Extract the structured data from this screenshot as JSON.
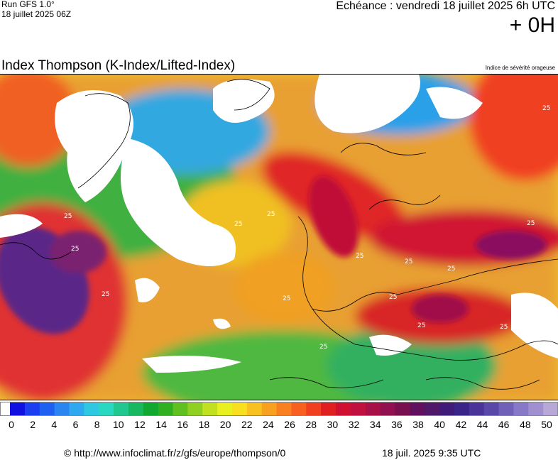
{
  "header": {
    "run": "Run GFS 1.0°",
    "run_date": "18 juillet 2025 06Z",
    "echeance": "Echéance : vendredi 18 juillet 2025 6h UTC",
    "hour": "+ 0H"
  },
  "map": {
    "title": "Index Thompson (K-Index/Lifted-Index)",
    "subtitle": "Indice de sévérité orageuse",
    "contour_labels": [
      "25",
      "25",
      "25",
      "25",
      "25",
      "25",
      "25",
      "25",
      "25",
      "25",
      "25",
      "25",
      "25",
      "25",
      "25",
      "25"
    ]
  },
  "legend": {
    "tick_labels": [
      "0",
      "2",
      "4",
      "6",
      "8",
      "10",
      "12",
      "14",
      "16",
      "18",
      "20",
      "22",
      "24",
      "26",
      "28",
      "30",
      "32",
      "34",
      "36",
      "38",
      "40",
      "42",
      "44",
      "46",
      "48",
      "50"
    ],
    "colors": [
      "#ffffff",
      "#1010e0",
      "#1a3ef0",
      "#1e60f0",
      "#2a85f0",
      "#30a8f0",
      "#2ec8e0",
      "#28d8c0",
      "#20c890",
      "#18b860",
      "#10a830",
      "#30b020",
      "#60c020",
      "#90d020",
      "#c0e020",
      "#e8f020",
      "#f8e020",
      "#f8c020",
      "#f8a020",
      "#f88020",
      "#f86020",
      "#f04020",
      "#e02020",
      "#d01030",
      "#c01040",
      "#a81048",
      "#901050",
      "#781050",
      "#60105c",
      "#501868",
      "#401c78",
      "#3a2488",
      "#4a3498",
      "#5a48a8",
      "#7060b8",
      "#8878c8",
      "#a090d0",
      "#b8a8d8"
    ]
  },
  "footer": {
    "url": "© http://www.infoclimat.fr/z/gfs/europe/thompson/0",
    "time": "18 juil. 2025  9:35 UTC"
  }
}
